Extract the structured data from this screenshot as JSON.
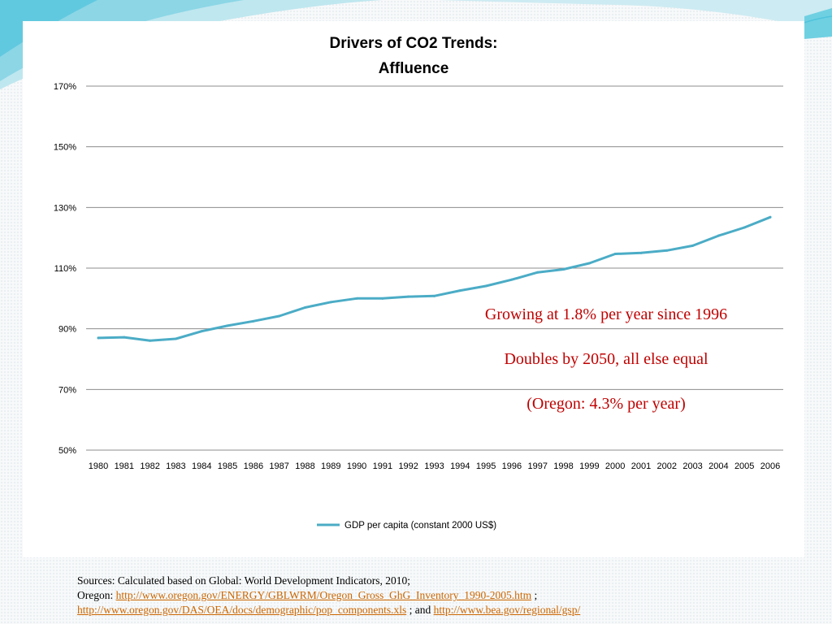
{
  "chart_data": {
    "type": "line",
    "title": [
      "Drivers of CO2 Trends:",
      "Affluence"
    ],
    "xlabel": "",
    "ylabel": "",
    "x": [
      "1980",
      "1981",
      "1982",
      "1983",
      "1984",
      "1985",
      "1986",
      "1987",
      "1988",
      "1989",
      "1990",
      "1991",
      "1992",
      "1993",
      "1994",
      "1995",
      "1996",
      "1997",
      "1998",
      "1999",
      "2000",
      "2001",
      "2002",
      "2003",
      "2004",
      "2005",
      "2006"
    ],
    "series": [
      {
        "name": "GDP per capita (constant 2000 US$)",
        "color": "#4bacc6",
        "values": [
          87.0,
          87.2,
          86.1,
          86.7,
          89.2,
          91.0,
          92.5,
          94.2,
          97.0,
          98.8,
          100.0,
          100.0,
          100.6,
          100.8,
          102.6,
          104.1,
          106.2,
          108.6,
          109.6,
          111.6,
          114.7,
          115.0,
          115.8,
          117.4,
          120.7,
          123.4,
          126.8
        ]
      }
    ],
    "ylim": [
      50,
      170
    ],
    "yticks": [
      50,
      70,
      90,
      110,
      130,
      150,
      170
    ],
    "ytick_labels": [
      "50%",
      "70%",
      "90%",
      "110%",
      "130%",
      "150%",
      "170%"
    ],
    "grid": true,
    "legend": "bottom",
    "annotations": [
      "Growing at 1.8% per year since 1996",
      "Doubles by 2050, all else equal",
      "(Oregon: 4.3% per year)"
    ]
  },
  "sources": {
    "line1": "Sources: Calculated based on Global: World Development Indicators, 2010;",
    "oregon_prefix": "Oregon: ",
    "link1": "http://www.oregon.gov/ENERGY/GBLWRM/Oregon_Gross_GhG_Inventory_1990-2005.htm",
    "sep1": " ;",
    "link2": "http://www.oregon.gov/DAS/OEA/docs/demographic/pop_components.xls",
    "sep2": " ; and ",
    "link3": "http://www.bea.gov/regional/gsp/"
  },
  "colors": {
    "annotation": "#c00000",
    "link": "#cc6600",
    "decoration": "#5bc8dc"
  }
}
